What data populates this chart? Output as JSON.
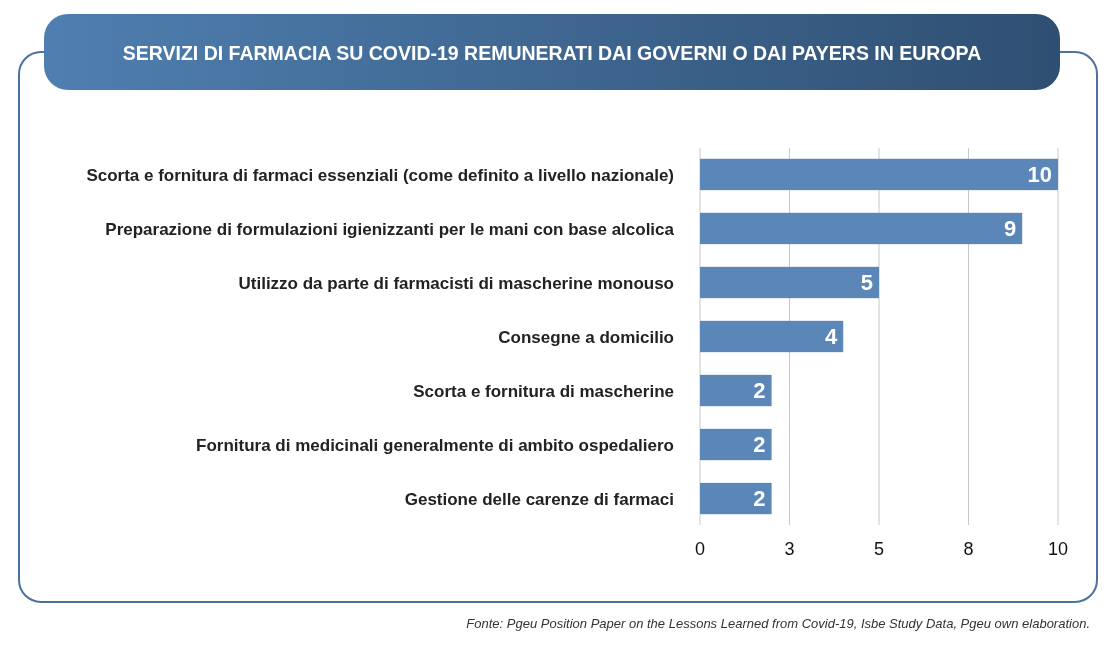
{
  "chart_data": {
    "type": "bar",
    "orientation": "horizontal",
    "title": "SERVIZI DI FARMACIA SU COVID-19 REMUNERATI DAI GOVERNI O DAI PAYERS IN EUROPA",
    "categories": [
      "Scorta e fornitura di farmaci essenziali (come definito a livello nazionale)",
      "Preparazione di formulazioni igienizzanti per le mani con base alcolica",
      "Utilizzo da parte di farmacisti di mascherine monouso",
      "Consegne a domicilio",
      "Scorta e fornitura di mascherine",
      "Fornitura di medicinali generalmente di ambito ospedaliero",
      "Gestione delle carenze di farmaci"
    ],
    "values": [
      10,
      9,
      5,
      4,
      2,
      2,
      2
    ],
    "color": "#5b86b8",
    "data_labels": true,
    "xlim": [
      0,
      10
    ],
    "xticks": [
      0,
      {
        "value": 2.5,
        "label": "3"
      },
      5,
      {
        "value": 7.5,
        "label": "8"
      },
      10
    ],
    "grid": "x",
    "annotations": [
      "Fonte: Pgeu Position Paper on the Lessons Learned from Covid-19, Isbe Study Data, Pgeu own elaboration."
    ]
  }
}
